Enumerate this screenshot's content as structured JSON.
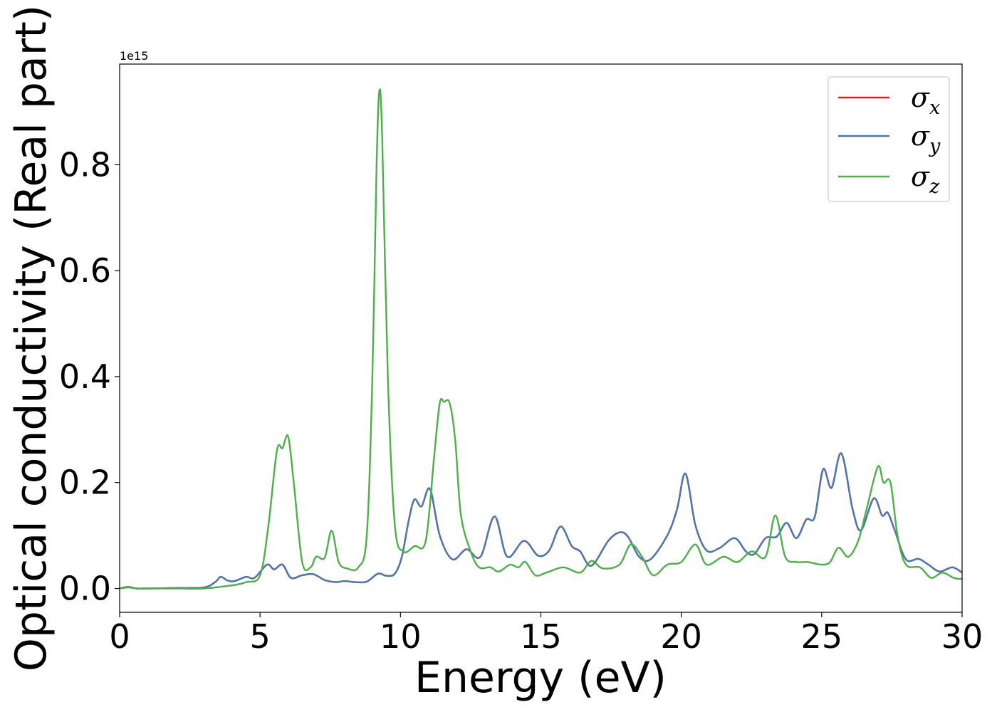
{
  "chart_data": {
    "type": "line",
    "xlabel": "Energy (eV)",
    "ylabel": "Optical conductivity (Real part)",
    "y_offset_label": "1e15",
    "xlim": [
      0,
      30
    ],
    "ylim": [
      -0.045,
      0.99
    ],
    "x_ticks": [
      0,
      5,
      10,
      15,
      20,
      25,
      30
    ],
    "x_tick_labels": [
      "0",
      "5",
      "10",
      "15",
      "20",
      "25",
      "30"
    ],
    "y_ticks": [
      0.0,
      0.2,
      0.4,
      0.6,
      0.8
    ],
    "y_tick_labels": [
      "0.0",
      "0.2",
      "0.4",
      "0.6",
      "0.8"
    ],
    "grid": false,
    "legend_position": "top-right",
    "series": [
      {
        "name": "σx",
        "symbol": "σ",
        "subscript": "x",
        "color": "#e41a1c",
        "x": [
          0,
          0.3,
          0.6,
          1,
          2,
          3,
          3.4,
          3.6,
          3.85,
          4.1,
          4.5,
          4.8,
          5.25,
          5.5,
          5.8,
          6.1,
          6.5,
          6.9,
          7.3,
          7.7,
          8.0,
          8.4,
          8.8,
          9.2,
          9.5,
          9.8,
          10.05,
          10.3,
          10.5,
          10.75,
          11.05,
          11.4,
          11.85,
          12.35,
          12.85,
          13.35,
          13.8,
          14.4,
          14.9,
          15.3,
          15.7,
          16.1,
          16.4,
          16.8,
          17.4,
          17.8,
          18.1,
          18.5,
          18.9,
          19.5,
          19.85,
          20.15,
          20.5,
          20.9,
          21.35,
          21.9,
          22.3,
          22.6,
          23.0,
          23.4,
          23.75,
          24.1,
          24.45,
          24.75,
          25.05,
          25.35,
          25.7,
          26.1,
          26.4,
          26.85,
          27.15,
          27.35,
          27.6,
          28.0,
          28.45,
          28.8,
          29.2,
          29.65,
          30
        ],
        "y": [
          0.0,
          0.003,
          0.0,
          0.0,
          0.001,
          0.002,
          0.012,
          0.022,
          0.015,
          0.014,
          0.022,
          0.02,
          0.045,
          0.036,
          0.045,
          0.02,
          0.025,
          0.027,
          0.016,
          0.012,
          0.014,
          0.012,
          0.013,
          0.028,
          0.024,
          0.028,
          0.06,
          0.13,
          0.168,
          0.155,
          0.188,
          0.1,
          0.055,
          0.074,
          0.06,
          0.136,
          0.06,
          0.09,
          0.062,
          0.072,
          0.117,
          0.08,
          0.07,
          0.043,
          0.09,
          0.106,
          0.098,
          0.06,
          0.055,
          0.1,
          0.15,
          0.217,
          0.12,
          0.072,
          0.076,
          0.095,
          0.07,
          0.065,
          0.095,
          0.098,
          0.124,
          0.095,
          0.13,
          0.135,
          0.225,
          0.19,
          0.255,
          0.15,
          0.11,
          0.17,
          0.138,
          0.143,
          0.11,
          0.055,
          0.056,
          0.045,
          0.032,
          0.04,
          0.03
        ]
      },
      {
        "name": "σy",
        "symbol": "σ",
        "subscript": "y",
        "color": "#4878b0",
        "x": [
          0,
          0.3,
          0.6,
          1,
          2,
          3,
          3.4,
          3.6,
          3.85,
          4.1,
          4.5,
          4.8,
          5.25,
          5.5,
          5.8,
          6.1,
          6.5,
          6.9,
          7.3,
          7.7,
          8.0,
          8.4,
          8.8,
          9.2,
          9.5,
          9.8,
          10.05,
          10.3,
          10.5,
          10.75,
          11.05,
          11.4,
          11.85,
          12.35,
          12.85,
          13.35,
          13.8,
          14.4,
          14.9,
          15.3,
          15.7,
          16.1,
          16.4,
          16.8,
          17.4,
          17.8,
          18.1,
          18.5,
          18.9,
          19.5,
          19.85,
          20.15,
          20.5,
          20.9,
          21.35,
          21.9,
          22.3,
          22.6,
          23.0,
          23.4,
          23.75,
          24.1,
          24.45,
          24.75,
          25.05,
          25.35,
          25.7,
          26.1,
          26.4,
          26.85,
          27.15,
          27.35,
          27.6,
          28.0,
          28.45,
          28.8,
          29.2,
          29.65,
          30
        ],
        "y": [
          0.0,
          0.003,
          0.0,
          0.0,
          0.001,
          0.002,
          0.012,
          0.022,
          0.015,
          0.014,
          0.022,
          0.02,
          0.045,
          0.036,
          0.045,
          0.02,
          0.025,
          0.027,
          0.016,
          0.012,
          0.014,
          0.012,
          0.013,
          0.028,
          0.024,
          0.028,
          0.06,
          0.13,
          0.168,
          0.155,
          0.188,
          0.1,
          0.055,
          0.074,
          0.06,
          0.136,
          0.06,
          0.09,
          0.062,
          0.072,
          0.117,
          0.08,
          0.07,
          0.043,
          0.09,
          0.106,
          0.098,
          0.06,
          0.055,
          0.1,
          0.15,
          0.217,
          0.12,
          0.072,
          0.076,
          0.095,
          0.07,
          0.065,
          0.095,
          0.098,
          0.124,
          0.095,
          0.13,
          0.135,
          0.225,
          0.19,
          0.255,
          0.15,
          0.11,
          0.17,
          0.138,
          0.143,
          0.11,
          0.055,
          0.056,
          0.045,
          0.032,
          0.04,
          0.03
        ]
      },
      {
        "name": "σz",
        "symbol": "σ",
        "subscript": "z",
        "color": "#4daf4a",
        "x": [
          0,
          0.3,
          0.6,
          1,
          2,
          3,
          4,
          4.5,
          5,
          5.3,
          5.6,
          5.8,
          6.0,
          6.2,
          6.5,
          6.8,
          7.0,
          7.3,
          7.55,
          7.8,
          8.1,
          8.5,
          8.8,
          9.0,
          9.15,
          9.25,
          9.35,
          9.55,
          9.8,
          10.1,
          10.5,
          10.9,
          11.2,
          11.4,
          11.55,
          11.75,
          11.95,
          12.15,
          12.5,
          12.8,
          13.2,
          13.5,
          13.9,
          14.2,
          14.45,
          14.8,
          15.2,
          15.8,
          16.4,
          16.8,
          17.2,
          17.8,
          18.2,
          18.6,
          19.0,
          19.5,
          20.0,
          20.5,
          20.9,
          21.5,
          22.0,
          22.5,
          23.0,
          23.35,
          23.7,
          24.1,
          24.5,
          25.0,
          25.3,
          25.6,
          25.95,
          26.3,
          26.6,
          27.0,
          27.2,
          27.45,
          27.7,
          28.0,
          28.5,
          28.9,
          29.3,
          29.7,
          30
        ],
        "y": [
          0.0,
          0.002,
          0.0,
          0.0,
          0.0,
          0.0,
          0.006,
          0.012,
          0.025,
          0.12,
          0.26,
          0.265,
          0.287,
          0.2,
          0.05,
          0.04,
          0.06,
          0.058,
          0.109,
          0.05,
          0.038,
          0.04,
          0.1,
          0.4,
          0.8,
          0.94,
          0.85,
          0.4,
          0.12,
          0.07,
          0.08,
          0.09,
          0.25,
          0.35,
          0.352,
          0.35,
          0.28,
          0.14,
          0.07,
          0.04,
          0.04,
          0.032,
          0.045,
          0.04,
          0.05,
          0.025,
          0.03,
          0.04,
          0.03,
          0.052,
          0.038,
          0.045,
          0.083,
          0.06,
          0.025,
          0.045,
          0.05,
          0.083,
          0.045,
          0.06,
          0.05,
          0.07,
          0.06,
          0.138,
          0.06,
          0.05,
          0.05,
          0.045,
          0.05,
          0.077,
          0.06,
          0.09,
          0.15,
          0.23,
          0.2,
          0.2,
          0.1,
          0.045,
          0.04,
          0.02,
          0.03,
          0.02,
          0.018
        ]
      }
    ]
  }
}
